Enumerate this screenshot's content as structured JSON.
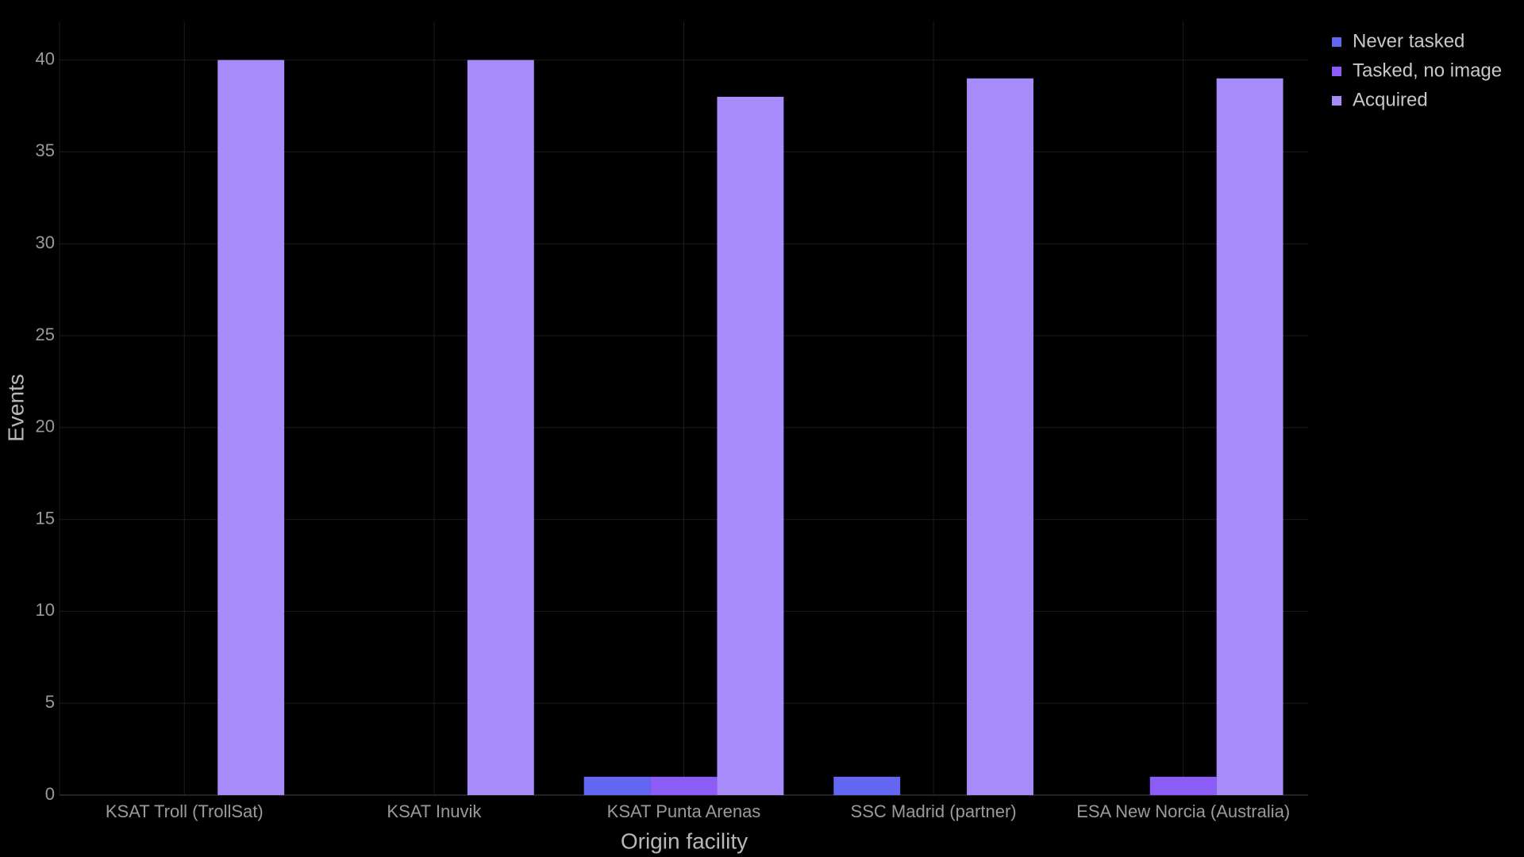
{
  "chart_data": {
    "type": "bar",
    "x_label": "Origin facility",
    "y_label": "Events",
    "categories": [
      "KSAT Troll (TrollSat)",
      "KSAT Inuvik",
      "KSAT Punta Arenas",
      "SSC Madrid (partner)",
      "ESA New Norcia (Australia)"
    ],
    "series": [
      {
        "name": "Never tasked",
        "color": "#6366f1",
        "values": [
          0,
          0,
          1,
          1,
          0
        ]
      },
      {
        "name": "Tasked, no image",
        "color": "#8b5cf6",
        "values": [
          0,
          0,
          1,
          0,
          1
        ]
      },
      {
        "name": "Acquired",
        "color": "#a78bfa",
        "values": [
          40,
          40,
          38,
          39,
          39
        ]
      }
    ],
    "ylim": [
      0,
      42.1
    ],
    "yticks": [
      0,
      5,
      10,
      15,
      20,
      25,
      30,
      35,
      40
    ],
    "grid": true,
    "legend": "top-right"
  }
}
